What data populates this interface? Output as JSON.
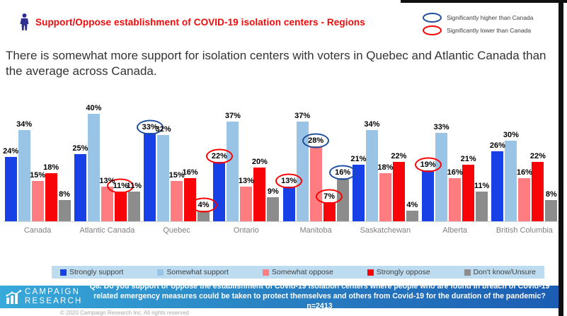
{
  "header": {
    "title": "Support/Oppose establishment of COVID-19 isolation centers - Regions",
    "title_color": "#f00a0a",
    "person_icon_color": "#2e3192"
  },
  "significance": {
    "higher_label": "Significantly higher than Canada",
    "lower_label": "Significantly lower than Canada",
    "colors": {
      "higher": "#1f4e9e",
      "lower": "#ff0000"
    }
  },
  "subtitle": "There is somewhat more support for isolation centers with voters in Quebec and Atlantic Canada than the average across Canada.",
  "chart_data": {
    "type": "bar",
    "title": "Support/Oppose establishment of COVID-19 isolation centers - Regions",
    "value_suffix": "%",
    "ylim": [
      0,
      43
    ],
    "grid": false,
    "legend_position": "bottom",
    "categories": [
      "Canada",
      "Atlantic Canada",
      "Quebec",
      "Ontario",
      "Manitoba",
      "Saskatchewan",
      "Alberta",
      "British Columbia"
    ],
    "series": [
      {
        "name": "Strongly support",
        "color": "#1741e6",
        "values": [
          24,
          25,
          33,
          22,
          13,
          21,
          19,
          26
        ]
      },
      {
        "name": "Somewhat support",
        "color": "#9ac4e6",
        "values": [
          34,
          40,
          32,
          37,
          37,
          34,
          33,
          30
        ]
      },
      {
        "name": "Somewhat oppose",
        "color": "#ff7c80",
        "values": [
          15,
          13,
          15,
          13,
          28,
          18,
          16,
          16
        ]
      },
      {
        "name": "Strongly oppose",
        "color": "#f70408",
        "values": [
          18,
          11,
          16,
          20,
          7,
          22,
          21,
          22
        ]
      },
      {
        "name": "Don't know/Unsure",
        "color": "#8c8c8c",
        "values": [
          8,
          11,
          4,
          9,
          16,
          4,
          11,
          8
        ]
      }
    ],
    "annotations": [
      {
        "category": "Quebec",
        "series": "Strongly support",
        "type": "higher"
      },
      {
        "category": "Manitoba",
        "series": "Somewhat oppose",
        "type": "higher"
      },
      {
        "category": "Manitoba",
        "series": "Don't know/Unsure",
        "type": "higher"
      },
      {
        "category": "Atlantic Canada",
        "series": "Strongly oppose",
        "type": "lower"
      },
      {
        "category": "Quebec",
        "series": "Don't know/Unsure",
        "type": "lower"
      },
      {
        "category": "Ontario",
        "series": "Strongly support",
        "type": "lower"
      },
      {
        "category": "Manitoba",
        "series": "Strongly support",
        "type": "lower"
      },
      {
        "category": "Manitoba",
        "series": "Strongly oppose",
        "type": "lower"
      },
      {
        "category": "Alberta",
        "series": "Strongly support",
        "type": "lower"
      }
    ]
  },
  "footer": {
    "logo_line1": "CAMPAIGN",
    "logo_line2": "RESEARCH",
    "question": "Q8. Do you support or oppose the establishment of Covid-19 isolation centers where people who are found in breach of Covid-19 related emergency measures could be taken to protect themselves and others from Covid-19 for the duration of the pandemic? n=2413",
    "copyright": "© 2020 Campaign Research Inc. All rights reserved"
  }
}
